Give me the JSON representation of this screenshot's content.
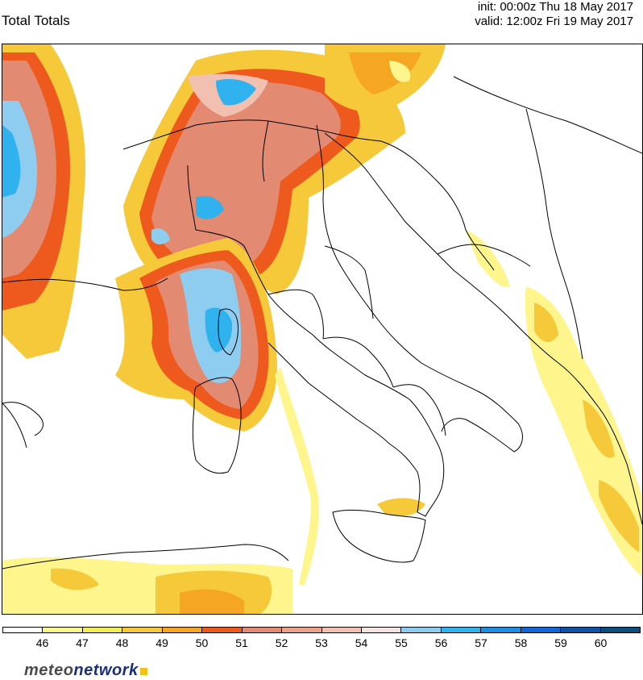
{
  "header": {
    "title": "Total Totals",
    "init": "init: 00:00z Thu 18 May 2017",
    "valid": "valid: 12:00z Fri 19 May 2017"
  },
  "legend": {
    "colors": [
      "#ffffff",
      "#fef58c",
      "#f3ee58",
      "#f5c93a",
      "#f5a623",
      "#ee5a1e",
      "#e38a72",
      "#eba18a",
      "#f2c0b0",
      "#f9e3e0",
      "#8fcdf0",
      "#2fb2ee",
      "#1d8ee6",
      "#1166d8",
      "#0e52a8",
      "#0b4e7e"
    ],
    "ticks": [
      "46",
      "47",
      "48",
      "49",
      "50",
      "51",
      "52",
      "53",
      "54",
      "55",
      "56",
      "57",
      "58",
      "59",
      "60"
    ]
  },
  "brand": {
    "part1": "meteo",
    "part2": "network"
  }
}
